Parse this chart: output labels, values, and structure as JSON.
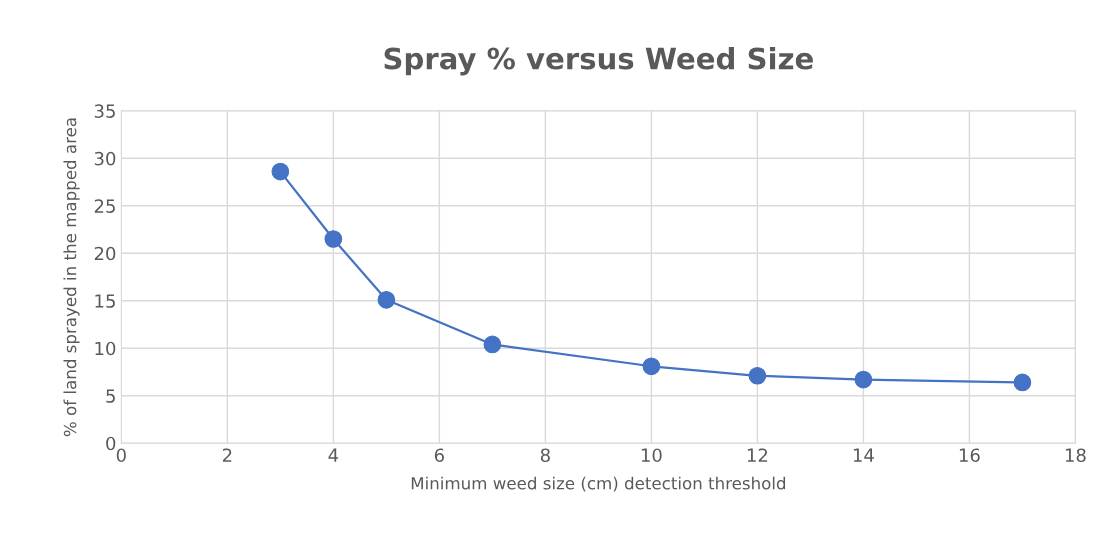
{
  "chart_data": {
    "type": "line",
    "title": "Spray % versus Weed Size",
    "xlabel": "Minimum weed size (cm) detection threshold",
    "ylabel": "% of land sprayed in the mapped area",
    "x": [
      3,
      4,
      5,
      7,
      10,
      12,
      14,
      17
    ],
    "series": [
      {
        "color": "#4472c4",
        "values": [
          28.6,
          21.5,
          15.1,
          10.4,
          8.1,
          7.1,
          6.7,
          6.4
        ]
      }
    ],
    "xlim": [
      0,
      18
    ],
    "xticks": [
      0,
      2,
      4,
      6,
      8,
      10,
      12,
      14,
      16,
      18
    ],
    "ylim": [
      0,
      35
    ],
    "yticks": [
      0,
      5,
      10,
      15,
      20,
      25,
      30,
      35
    ],
    "grid": true,
    "marker": "circle",
    "line_style": "solid"
  }
}
